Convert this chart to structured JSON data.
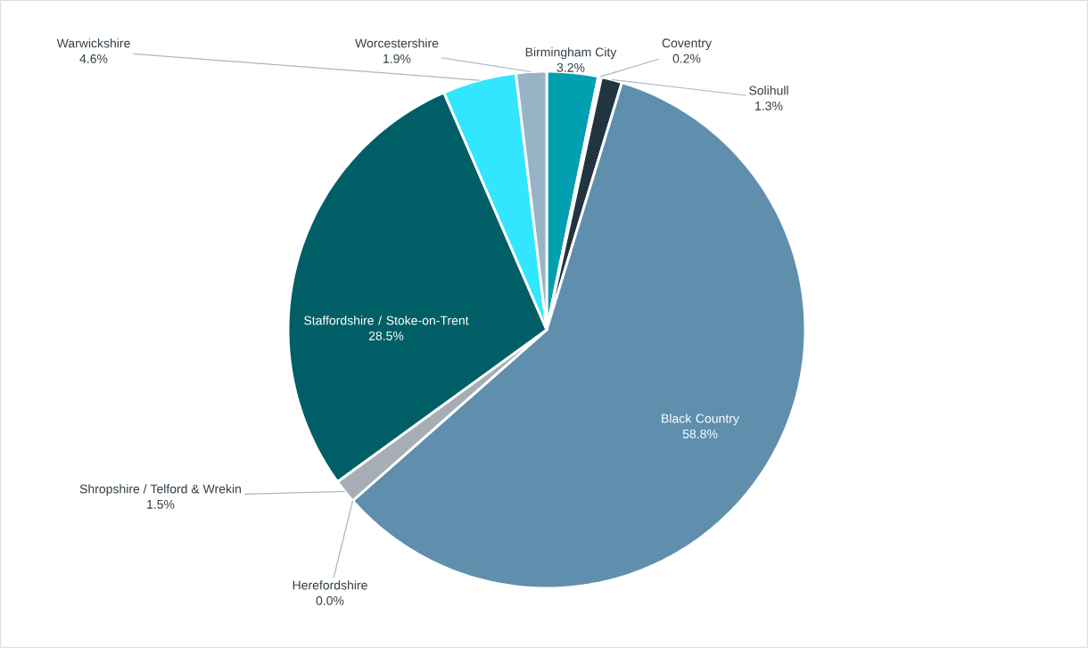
{
  "chart_data": {
    "type": "pie",
    "categories": [
      "Birmingham City",
      "Coventry",
      "Solihull",
      "Black Country",
      "Herefordshire",
      "Shropshire / Telford & Wrekin",
      "Staffordshire / Stoke-on-Trent",
      "Warwickshire",
      "Worcestershire"
    ],
    "values": [
      3.2,
      0.2,
      1.3,
      58.8,
      0.0,
      1.5,
      28.5,
      4.6,
      1.9
    ],
    "value_labels": [
      "3.2%",
      "0.2%",
      "1.3%",
      "58.8%",
      "0.0%",
      "1.5%",
      "28.5%",
      "4.6%",
      "1.9%"
    ],
    "colors": [
      "#00a0b0",
      "#f2f2f2",
      "#22343f",
      "#5f8fad",
      "#7f8a93",
      "#a6adb4",
      "#005f66",
      "#33e6ff",
      "#97b3c6"
    ],
    "data_labels": true
  }
}
